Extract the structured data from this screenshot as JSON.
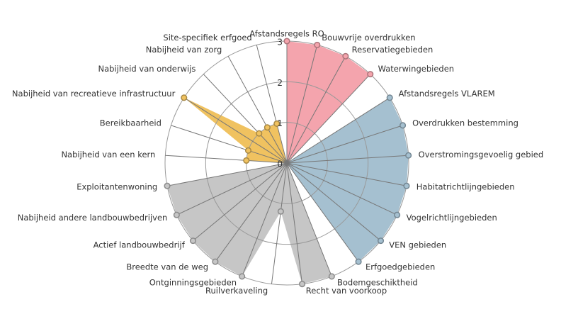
{
  "chart_data": {
    "type": "radar",
    "categories": [
      "Afstandsregels RO",
      "Bouwvrije overdrukken",
      "Reservatiegebieden",
      "Waterwingebieden",
      "Afstandsregels VLAREM",
      "Overdrukken bestemming",
      "Overstromingsgevoelig gebied",
      "Habitatrichtlijngebieden",
      "Vogelrichtlijngebieden",
      "VEN gebieden",
      "Erfgoedgebieden",
      "Bodemgeschiktheid",
      "Recht van voorkoop",
      "Ruilverkaveling",
      "Ontginningsgebieden",
      "Breedte van de weg",
      "Actief landbouwbedrijf",
      "Nabijheid andere landbouwbedrijven",
      "Exploitantenwoning",
      "Nabijheid van een kern",
      "Bereikbaarheid",
      "Nabijheid van recreatieve infrastructuur",
      "Nabijheid van onderwijs",
      "Nabijheid van zorg",
      "Site-specifiek erfgoed"
    ],
    "series": [
      {
        "color": "#f4a4ad",
        "values": [
          3,
          3,
          3,
          3,
          null,
          null,
          null,
          null,
          null,
          null,
          null,
          null,
          null,
          null,
          null,
          null,
          null,
          null,
          null,
          null,
          null,
          null,
          null,
          null,
          null
        ]
      },
      {
        "color": "#a5c0d0",
        "values": [
          null,
          null,
          null,
          null,
          3,
          3,
          3,
          3,
          3,
          3,
          3,
          null,
          null,
          null,
          null,
          null,
          null,
          null,
          null,
          null,
          null,
          null,
          null,
          null,
          null
        ]
      },
      {
        "color": "#c6c6c6",
        "values": [
          null,
          null,
          null,
          null,
          null,
          null,
          null,
          null,
          null,
          null,
          null,
          3,
          3,
          1.2,
          3,
          3,
          3,
          3,
          3,
          null,
          null,
          null,
          null,
          null,
          null
        ]
      },
      {
        "color": "#f0c260",
        "values": [
          null,
          null,
          null,
          null,
          null,
          null,
          null,
          null,
          null,
          null,
          null,
          null,
          null,
          null,
          null,
          null,
          null,
          null,
          null,
          1,
          1,
          3,
          1,
          1,
          1
        ]
      }
    ],
    "rlim": [
      0,
      3
    ],
    "rticks": [
      0,
      1,
      2,
      3
    ],
    "grid": true
  }
}
